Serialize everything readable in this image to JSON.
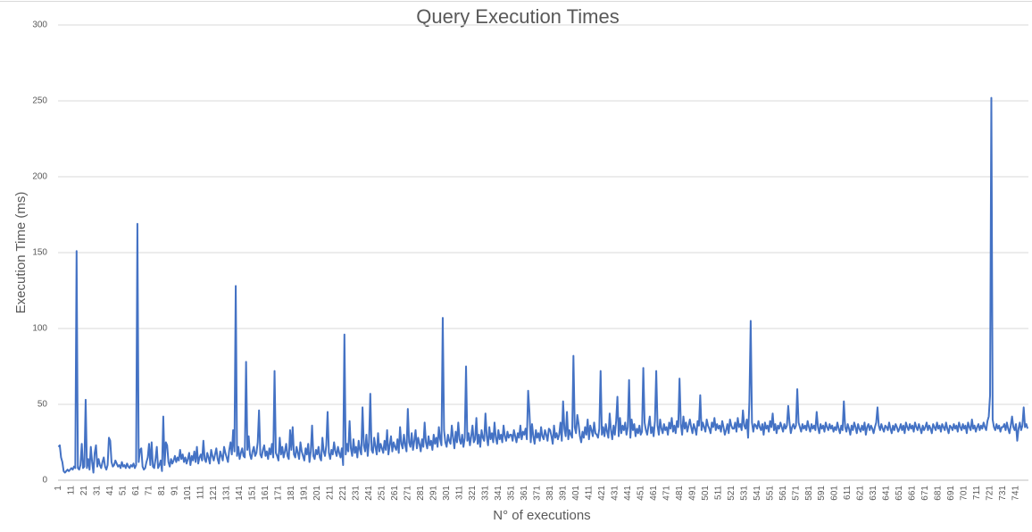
{
  "chart_data": {
    "type": "line",
    "title": "Query Execution Times",
    "y_label": "Execution Time (ms)",
    "x_label": "N° of executions",
    "color": "#4472c4",
    "grid": true,
    "ylim": [
      0,
      300
    ],
    "yticks": [
      0,
      50,
      100,
      150,
      200,
      250,
      300
    ],
    "categories": [
      1,
      null,
      null,
      null,
      null,
      null,
      null,
      null,
      null,
      null,
      11,
      null,
      null,
      null,
      null,
      null,
      null,
      null,
      null,
      null,
      21,
      null,
      null,
      null,
      null,
      null,
      null,
      null,
      null,
      null,
      31,
      null,
      null,
      null,
      null,
      null,
      null,
      null,
      null,
      null,
      41,
      null,
      null,
      null,
      null,
      null,
      null,
      null,
      null,
      null,
      51,
      null,
      null,
      null,
      null,
      null,
      null,
      null,
      null,
      null,
      61,
      null,
      null,
      null,
      null,
      null,
      null,
      null,
      null,
      null,
      71,
      null,
      null,
      null,
      null,
      null,
      null,
      null,
      null,
      null,
      81,
      null,
      null,
      null,
      null,
      null,
      null,
      null,
      null,
      null,
      91,
      null,
      null,
      null,
      null,
      null,
      null,
      null,
      null,
      null,
      101,
      null,
      null,
      null,
      null,
      null,
      null,
      null,
      null,
      null,
      111,
      null,
      null,
      null,
      null,
      null,
      null,
      null,
      null,
      null,
      121,
      null,
      null,
      null,
      null,
      null,
      null,
      null,
      null,
      null,
      131,
      null,
      null,
      null,
      null,
      null,
      null,
      null,
      null,
      null,
      141,
      null,
      null,
      null,
      null,
      null,
      null,
      null,
      null,
      null,
      151,
      null,
      null,
      null,
      null,
      null,
      null,
      null,
      null,
      null,
      161,
      null,
      null,
      null,
      null,
      null,
      null,
      null,
      null,
      null,
      171,
      null,
      null,
      null,
      null,
      null,
      null,
      null,
      null,
      null,
      181,
      null,
      null,
      null,
      null,
      null,
      null,
      null,
      null,
      null,
      191,
      null,
      null,
      null,
      null,
      null,
      null,
      null,
      null,
      null,
      201,
      null,
      null,
      null,
      null,
      null,
      null,
      null,
      null,
      null,
      211,
      null,
      null,
      null,
      null,
      null,
      null,
      null,
      null,
      null,
      221,
      null,
      null,
      null,
      null,
      null,
      null,
      null,
      null,
      null,
      231,
      null,
      null,
      null,
      null,
      null,
      null,
      null,
      null,
      null,
      241,
      null,
      null,
      null,
      null,
      null,
      null,
      null,
      null,
      null,
      251,
      null,
      null,
      null,
      null,
      null,
      null,
      null,
      null,
      null,
      261,
      null,
      null,
      null,
      null,
      null,
      null,
      null,
      null,
      null,
      271,
      null,
      null,
      null,
      null,
      null,
      null,
      null,
      null,
      null,
      281,
      null,
      null,
      null,
      null,
      null,
      null,
      null,
      null,
      null,
      291,
      null,
      null,
      null,
      null,
      null,
      null,
      null,
      null,
      null,
      301,
      null,
      null,
      null,
      null,
      null,
      null,
      null,
      null,
      null,
      311,
      null,
      null,
      null,
      null,
      null,
      null,
      null,
      null,
      null,
      321,
      null,
      null,
      null,
      null,
      null,
      null,
      null,
      null,
      null,
      331,
      null,
      null,
      null,
      null,
      null,
      null,
      null,
      null,
      null,
      341,
      null,
      null,
      null,
      null,
      null,
      null,
      null,
      null,
      null,
      351,
      null,
      null,
      null,
      null,
      null,
      null,
      null,
      null,
      null,
      361,
      null,
      null,
      null,
      null,
      null,
      null,
      null,
      null,
      null,
      371,
      null,
      null,
      null,
      null,
      null,
      null,
      null,
      null,
      null,
      381,
      null,
      null,
      null,
      null,
      null,
      null,
      null,
      null,
      null,
      391,
      null,
      null,
      null,
      null,
      null,
      null,
      null,
      null,
      null,
      401,
      null,
      null,
      null,
      null,
      null,
      null,
      null,
      null,
      null,
      411,
      null,
      null,
      null,
      null,
      null,
      null,
      null,
      null,
      null,
      421,
      null,
      null,
      null,
      null,
      null,
      null,
      null,
      null,
      null,
      431,
      null,
      null,
      null,
      null,
      null,
      null,
      null,
      null,
      null,
      441,
      null,
      null,
      null,
      null,
      null,
      null,
      null,
      null,
      null,
      451,
      null,
      null,
      null,
      null,
      null,
      null,
      null,
      null,
      null,
      461,
      null,
      null,
      null,
      null,
      null,
      null,
      null,
      null,
      null,
      471,
      null,
      null,
      null,
      null,
      null,
      null,
      null,
      null,
      null,
      481,
      null,
      null,
      null,
      null,
      null,
      null,
      null,
      null,
      null,
      491,
      null,
      null,
      null,
      null,
      null,
      null,
      null,
      null,
      null,
      501,
      null,
      null,
      null,
      null,
      null,
      null,
      null,
      null,
      null,
      511,
      null,
      null,
      null,
      null,
      null,
      null,
      null,
      null,
      null,
      521,
      null,
      null,
      null,
      null,
      null,
      null,
      null,
      null,
      null,
      531,
      null,
      null,
      null,
      null,
      null,
      null,
      null,
      null,
      null,
      541,
      null,
      null,
      null,
      null,
      null,
      null,
      null,
      null,
      null,
      551,
      null,
      null,
      null,
      null,
      null,
      null,
      null,
      null,
      null,
      561,
      null,
      null,
      null,
      null,
      null,
      null,
      null,
      null,
      null,
      571,
      null,
      null,
      null,
      null,
      null,
      null,
      null,
      null,
      null,
      581,
      null,
      null,
      null,
      null,
      null,
      null,
      null,
      null,
      null,
      591,
      null,
      null,
      null,
      null,
      null,
      null,
      null,
      null,
      null,
      601,
      null,
      null,
      null,
      null,
      null,
      null,
      null,
      null,
      null,
      611,
      null,
      null,
      null,
      null,
      null,
      null,
      null,
      null,
      null,
      621,
      null,
      null,
      null,
      null,
      null,
      null,
      null,
      null,
      null,
      631,
      null,
      null,
      null,
      null,
      null,
      null,
      null,
      null,
      null,
      641,
      null,
      null,
      null,
      null,
      null,
      null,
      null,
      null,
      null,
      651,
      null,
      null,
      null,
      null,
      null,
      null,
      null,
      null,
      null,
      661,
      null,
      null,
      null,
      null,
      null,
      null,
      null,
      null,
      null,
      671,
      null,
      null,
      null,
      null,
      null,
      null,
      null,
      null,
      null,
      681,
      null,
      null,
      null,
      null,
      null,
      null,
      null,
      null,
      null,
      691,
      null,
      null,
      null,
      null,
      null,
      null,
      null,
      null,
      null,
      701,
      null,
      null,
      null,
      null,
      null,
      null,
      null,
      null,
      null,
      711,
      null,
      null,
      null,
      null,
      null,
      null,
      null,
      null,
      null,
      721,
      null,
      null,
      null,
      null,
      null,
      null,
      null,
      null,
      null,
      731,
      null,
      null,
      null,
      null,
      null,
      null,
      null,
      null,
      null,
      741,
      null,
      null,
      null,
      null,
      null,
      null,
      null,
      null,
      null
    ],
    "values": [
      22,
      23,
      15,
      12,
      6,
      5,
      6,
      7,
      6,
      7,
      8,
      7,
      9,
      8,
      151,
      8,
      7,
      10,
      24,
      8,
      9,
      53,
      8,
      14,
      7,
      22,
      12,
      5,
      18,
      23,
      9,
      14,
      10,
      8,
      12,
      15,
      9,
      7,
      10,
      28,
      26,
      12,
      9,
      10,
      13,
      11,
      9,
      10,
      8,
      12,
      9,
      10,
      8,
      11,
      9,
      8,
      10,
      9,
      11,
      8,
      10,
      169,
      12,
      20,
      21,
      9,
      7,
      8,
      12,
      15,
      24,
      10,
      25,
      9,
      8,
      14,
      22,
      8,
      10,
      13,
      6,
      42,
      10,
      25,
      23,
      12,
      9,
      14,
      11,
      13,
      16,
      12,
      15,
      13,
      20,
      14,
      17,
      12,
      15,
      11,
      14,
      18,
      10,
      16,
      13,
      19,
      12,
      22,
      11,
      15,
      17,
      13,
      26,
      14,
      12,
      18,
      15,
      11,
      20,
      16,
      13,
      17,
      21,
      14,
      11,
      19,
      16,
      13,
      22,
      18,
      15,
      12,
      20,
      25,
      17,
      33,
      19,
      128,
      16,
      22,
      14,
      18,
      21,
      16,
      15,
      78,
      20,
      29,
      17,
      14,
      19,
      22,
      16,
      18,
      25,
      46,
      17,
      15,
      20,
      23,
      16,
      19,
      14,
      21,
      17,
      24,
      15,
      72,
      18,
      16,
      13,
      28,
      17,
      22,
      15,
      19,
      24,
      16,
      14,
      33,
      20,
      35,
      17,
      15,
      22,
      18,
      14,
      25,
      19,
      16,
      13,
      21,
      17,
      24,
      12,
      19,
      36,
      16,
      14,
      20,
      17,
      22,
      15,
      13,
      28,
      19,
      16,
      23,
      45,
      18,
      14,
      20,
      17,
      25,
      19,
      16,
      22,
      18,
      15,
      21,
      10,
      96,
      17,
      24,
      19,
      39,
      21,
      16,
      27,
      18,
      22,
      15,
      26,
      20,
      17,
      48,
      23,
      19,
      30,
      16,
      25,
      57,
      20,
      18,
      28,
      22,
      17,
      31,
      19,
      24,
      21,
      18,
      26,
      20,
      33,
      17,
      23,
      29,
      19,
      25,
      22,
      20,
      27,
      18,
      35,
      24,
      21,
      30,
      23,
      19,
      47,
      25,
      22,
      31,
      20,
      26,
      33,
      21,
      28,
      24,
      19,
      27,
      22,
      38,
      25,
      21,
      29,
      23,
      26,
      20,
      30,
      24,
      28,
      22,
      35,
      27,
      23,
      107,
      33,
      25,
      22,
      30,
      26,
      24,
      36,
      28,
      21,
      32,
      25,
      38,
      27,
      24,
      30,
      22,
      28,
      75,
      26,
      31,
      23,
      29,
      36,
      25,
      27,
      41,
      24,
      30,
      22,
      33,
      28,
      26,
      44,
      29,
      23,
      35,
      27,
      31,
      25,
      38,
      28,
      24,
      33,
      27,
      30,
      25,
      36,
      29,
      26,
      32,
      28,
      30,
      30,
      26,
      33,
      29,
      25,
      31,
      28,
      36,
      27,
      32,
      30,
      34,
      27,
      59,
      45,
      25,
      37,
      29,
      24,
      33,
      28,
      31,
      26,
      35,
      29,
      27,
      33,
      30,
      26,
      34,
      33,
      29,
      24,
      36,
      28,
      31,
      27,
      30,
      38,
      26,
      52,
      34,
      29,
      45,
      27,
      33,
      30,
      28,
      82,
      35,
      31,
      43,
      37,
      29,
      25,
      32,
      28,
      35,
      30,
      40,
      27,
      36,
      33,
      29,
      38,
      31,
      30,
      28,
      34,
      72,
      30,
      35,
      29,
      37,
      32,
      28,
      44,
      33,
      27,
      36,
      30,
      39,
      55,
      29,
      41,
      31,
      36,
      33,
      38,
      30,
      35,
      66,
      28,
      40,
      33,
      37,
      29,
      34,
      31,
      36,
      30,
      32,
      74,
      38,
      33,
      30,
      36,
      42,
      31,
      35,
      29,
      39,
      72,
      36,
      30,
      40,
      34,
      31,
      37,
      33,
      35,
      30,
      38,
      34,
      41,
      32,
      36,
      31,
      39,
      35,
      67,
      37,
      30,
      42,
      34,
      38,
      32,
      36,
      40,
      35,
      31,
      37,
      34,
      30,
      39,
      36,
      56,
      33,
      38,
      35,
      32,
      40,
      36,
      34,
      31,
      38,
      35,
      41,
      33,
      37,
      34,
      36,
      32,
      39,
      35,
      30,
      33,
      37,
      31,
      40,
      36,
      34,
      34,
      38,
      32,
      41,
      35,
      37,
      33,
      46,
      36,
      34,
      40,
      28,
      52,
      105,
      38,
      32,
      37,
      36,
      34,
      39,
      35,
      33,
      37,
      30,
      38,
      34,
      36,
      32,
      39,
      35,
      44,
      33,
      37,
      31,
      36,
      34,
      38,
      35,
      32,
      37,
      34,
      36,
      49,
      38,
      31,
      35,
      37,
      34,
      36,
      60,
      38,
      35,
      32,
      37,
      34,
      36,
      33,
      39,
      35,
      32,
      37,
      34,
      36,
      33,
      45,
      35,
      31,
      37,
      34,
      36,
      32,
      38,
      35,
      33,
      37,
      34,
      36,
      32,
      35,
      33,
      38,
      34,
      31,
      36,
      33,
      52,
      35,
      32,
      37,
      34,
      30,
      36,
      33,
      38,
      35,
      31,
      37,
      34,
      32,
      36,
      33,
      38,
      30,
      35,
      37,
      33,
      36,
      34,
      31,
      35,
      38,
      48,
      36,
      33,
      37,
      34,
      32,
      36,
      35,
      33,
      38,
      34,
      31,
      36,
      33,
      37,
      35,
      32,
      34,
      37,
      33,
      36,
      31,
      38,
      35,
      33,
      37,
      34,
      36,
      32,
      38,
      35,
      33,
      37,
      34,
      31,
      36,
      33,
      35,
      38,
      33,
      36,
      34,
      31,
      37,
      35,
      33,
      38,
      34,
      36,
      32,
      37,
      35,
      33,
      38,
      34,
      31,
      36,
      35,
      33,
      37,
      34,
      36,
      32,
      38,
      35,
      33,
      37,
      34,
      36,
      31,
      38,
      35,
      33,
      40,
      34,
      36,
      32,
      35,
      37,
      33,
      36,
      34,
      38,
      35,
      33,
      39,
      42,
      56,
      252,
      40,
      35,
      33,
      37,
      34,
      36,
      32,
      35,
      35,
      37,
      33,
      38,
      34,
      31,
      36,
      42,
      35,
      33,
      37,
      26,
      34,
      38,
      33,
      36,
      48,
      35,
      37,
      34
    ]
  }
}
